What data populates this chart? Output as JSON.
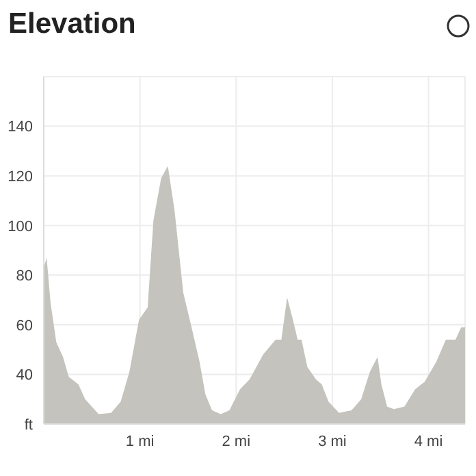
{
  "chart_data": {
    "type": "area",
    "title": "Elevation",
    "x": [
      0,
      0.03,
      0.07,
      0.13,
      0.2,
      0.26,
      0.36,
      0.43,
      0.57,
      0.7,
      0.8,
      0.89,
      0.99,
      1.08,
      1.14,
      1.22,
      1.29,
      1.36,
      1.45,
      1.53,
      1.62,
      1.68,
      1.75,
      1.84,
      1.93,
      2.04,
      2.14,
      2.28,
      2.41,
      2.47,
      2.53,
      2.59,
      2.64,
      2.68,
      2.74,
      2.83,
      2.89,
      2.96,
      3.07,
      3.2,
      3.3,
      3.39,
      3.47,
      3.51,
      3.57,
      3.64,
      3.75,
      3.86,
      3.96,
      4.08,
      4.18,
      4.28,
      4.34,
      4.38
    ],
    "series": [
      {
        "color": "#c4c3bd",
        "values": [
          83,
          87,
          69,
          53,
          47,
          39,
          36,
          30,
          24,
          24.5,
          29,
          41,
          62,
          67,
          102,
          119,
          124,
          106,
          73,
          60,
          45,
          32,
          25.5,
          24,
          25.5,
          34,
          38,
          48,
          54,
          54,
          71,
          62,
          54,
          54,
          43,
          38,
          36,
          29,
          24.5,
          25.5,
          30,
          41,
          47,
          36,
          27,
          26,
          27,
          34,
          37,
          45,
          54,
          54,
          59,
          59
        ]
      }
    ],
    "xlim": [
      0,
      4.38
    ],
    "xticks": [
      {
        "value": 1,
        "label": "1 mi"
      },
      {
        "value": 2,
        "label": "2 mi"
      },
      {
        "value": 3,
        "label": "3 mi"
      },
      {
        "value": 4,
        "label": "4 mi"
      }
    ],
    "ylim": [
      20,
      160
    ],
    "yticks": [
      {
        "value": 20,
        "label": "ft"
      },
      40,
      60,
      80,
      100,
      120,
      140
    ],
    "grid": true
  }
}
